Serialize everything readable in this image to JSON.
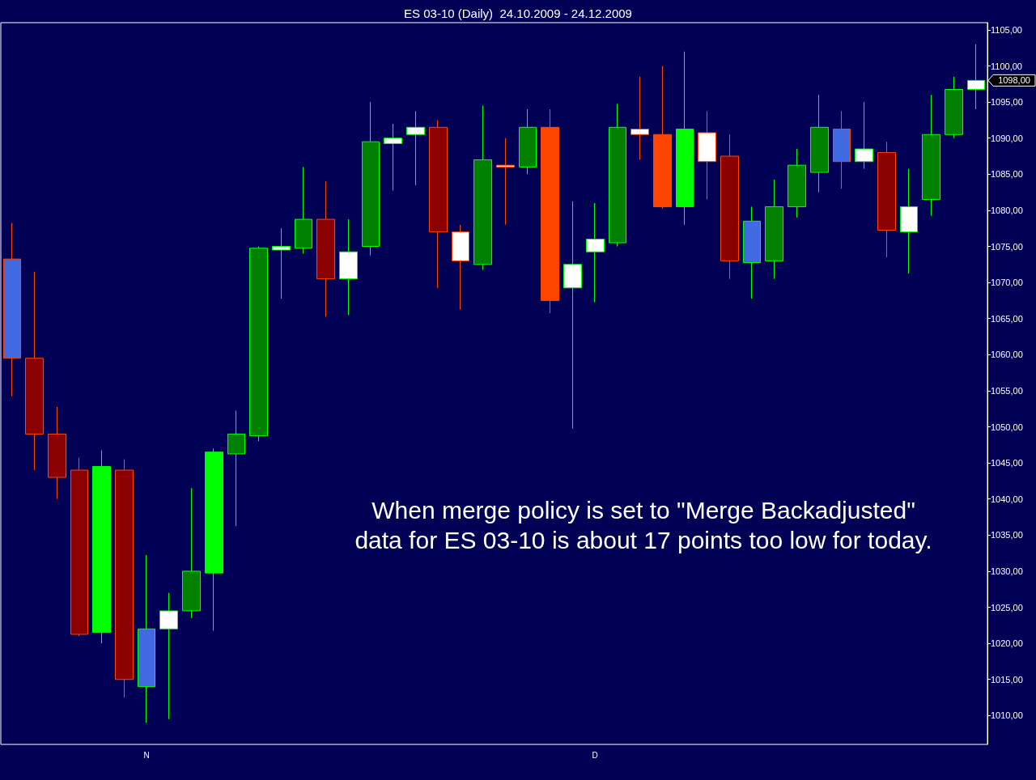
{
  "chart_data": {
    "type": "candlestick",
    "title": "ES 03-10 (Daily)  24.10.2009 - 24.12.2009",
    "categories": [
      null,
      null,
      null,
      null,
      null,
      null,
      "N",
      null,
      null,
      null,
      null,
      null,
      null,
      null,
      null,
      null,
      null,
      null,
      null,
      null,
      null,
      null,
      null,
      null,
      null,
      null,
      "D",
      null,
      null,
      null,
      null,
      null,
      null,
      null,
      null,
      null,
      null,
      null,
      null,
      null,
      null,
      null,
      null,
      null
    ],
    "ohlc": [
      [
        1073.25,
        1078.25,
        1054.25,
        1059.5
      ],
      [
        1059.5,
        1071.5,
        1044,
        1049
      ],
      [
        1049,
        1052.75,
        1040,
        1043
      ],
      [
        1044,
        1045.75,
        1021,
        1021.25
      ],
      [
        1021.5,
        1046.75,
        1020,
        1044.5
      ],
      [
        1044,
        1045.5,
        1012.5,
        1015
      ],
      [
        1014,
        1032.25,
        1009,
        1022
      ],
      [
        1022,
        1027,
        1009.5,
        1024.5
      ],
      [
        1024.5,
        1041.5,
        1023.5,
        1030
      ],
      [
        1029.75,
        1047,
        1021.75,
        1046.5
      ],
      [
        1046.25,
        1052.25,
        1036.25,
        1049
      ],
      [
        1048.75,
        1075,
        1048,
        1074.75
      ],
      [
        1074.5,
        1077.5,
        1067.75,
        1075
      ],
      [
        1074.75,
        1086,
        1074,
        1078.75
      ],
      [
        1078.75,
        1084,
        1065.25,
        1070.5
      ],
      [
        1070.5,
        1078.75,
        1065.5,
        1074.25
      ],
      [
        1075,
        1095,
        1073.75,
        1089.5
      ],
      [
        1089.25,
        1092,
        1082.75,
        1090
      ],
      [
        1090.5,
        1093.75,
        1083.5,
        1091.5
      ],
      [
        1091.5,
        1092.5,
        1069.25,
        1077
      ],
      [
        1077,
        1078,
        1066.25,
        1073
      ],
      [
        1072.5,
        1094.5,
        1071.75,
        1087
      ],
      [
        1086.25,
        1090,
        1078,
        1086
      ],
      [
        1086,
        1094,
        1085,
        1091.5
      ],
      [
        1091.5,
        1094,
        1065.75,
        1067.5
      ],
      [
        1069.25,
        1081.25,
        1049.75,
        1072.5
      ],
      [
        1074.25,
        1081,
        1067.25,
        1076
      ],
      [
        1075.5,
        1094.75,
        1075,
        1091.5
      ],
      [
        1091.25,
        1098.5,
        1087,
        1090.5
      ],
      [
        1090.5,
        1100,
        1080.25,
        1080.5
      ],
      [
        1080.5,
        1102,
        1078,
        1091.25
      ],
      [
        1090.75,
        1093.75,
        1081.5,
        1086.75
      ],
      [
        1087.5,
        1090.5,
        1070.5,
        1073
      ],
      [
        1072.75,
        1080.5,
        1067.75,
        1078.5
      ],
      [
        1073,
        1084.25,
        1070.5,
        1080.5
      ],
      [
        1080.5,
        1088.5,
        1079,
        1086.25
      ],
      [
        1085.25,
        1096,
        1082.5,
        1091.5
      ],
      [
        1091.25,
        1093.75,
        1083,
        1086.75
      ],
      [
        1086.75,
        1095,
        1085.75,
        1088.5
      ],
      [
        1088,
        1089.5,
        1073.5,
        1077.25
      ],
      [
        1077,
        1085.75,
        1071.25,
        1080.5
      ],
      [
        1081.5,
        1096,
        1079.25,
        1090.5
      ],
      [
        1090.5,
        1098.5,
        1090,
        1096.75
      ],
      [
        1096.75,
        1103,
        1094,
        1098
      ]
    ],
    "colors": [
      "#4169e1",
      "#8b0000",
      "#8b0000",
      "#8b0000",
      "#00ff00",
      "#8b0000",
      "#4169e1",
      "#ffffff",
      "#008000",
      "#00ff00",
      "#008000",
      "#008000",
      "#ffffff",
      "#008000",
      "#8b0000",
      "#ffffff",
      "#008000",
      "#ffffff",
      "#ffffff",
      "#8b0000",
      "#ffffff",
      "#008000",
      "#ffffff",
      "#008000",
      "#ff4500",
      "#ffffff",
      "#ffffff",
      "#008000",
      "#ffffff",
      "#ff4500",
      "#00ff00",
      "#ffffff",
      "#8b0000",
      "#4169e1",
      "#008000",
      "#008000",
      "#008000",
      "#4169e1",
      "#ffffff",
      "#8b0000",
      "#ffffff",
      "#008000",
      "#008000",
      "#ffffff"
    ],
    "ylim": [
      1006,
      1106
    ],
    "yticks": [
      {
        "value": 1010,
        "label": "1010,00"
      },
      {
        "value": 1015,
        "label": "1015,00"
      },
      {
        "value": 1020,
        "label": "1020,00"
      },
      {
        "value": 1025,
        "label": "1025,00"
      },
      {
        "value": 1030,
        "label": "1030,00"
      },
      {
        "value": 1035,
        "label": "1035,00"
      },
      {
        "value": 1040,
        "label": "1040,00"
      },
      {
        "value": 1045,
        "label": "1045,00"
      },
      {
        "value": 1050,
        "label": "1050,00"
      },
      {
        "value": 1055,
        "label": "1055,00"
      },
      {
        "value": 1060,
        "label": "1060,00"
      },
      {
        "value": 1065,
        "label": "1065,00"
      },
      {
        "value": 1070,
        "label": "1070,00"
      },
      {
        "value": 1075,
        "label": "1075,00"
      },
      {
        "value": 1080,
        "label": "1080,00"
      },
      {
        "value": 1085,
        "label": "1085,00"
      },
      {
        "value": 1090,
        "label": "1090,00"
      },
      {
        "value": 1095,
        "label": "1095,00"
      },
      {
        "value": 1100,
        "label": "1100,00"
      },
      {
        "value": 1105,
        "label": "1105,00"
      }
    ],
    "annotations": [
      "When merge policy is set to \"Merge Backadjusted\"",
      "data for ES 03-10 is about 17 points too low for today.",
      "1098,00"
    ]
  }
}
